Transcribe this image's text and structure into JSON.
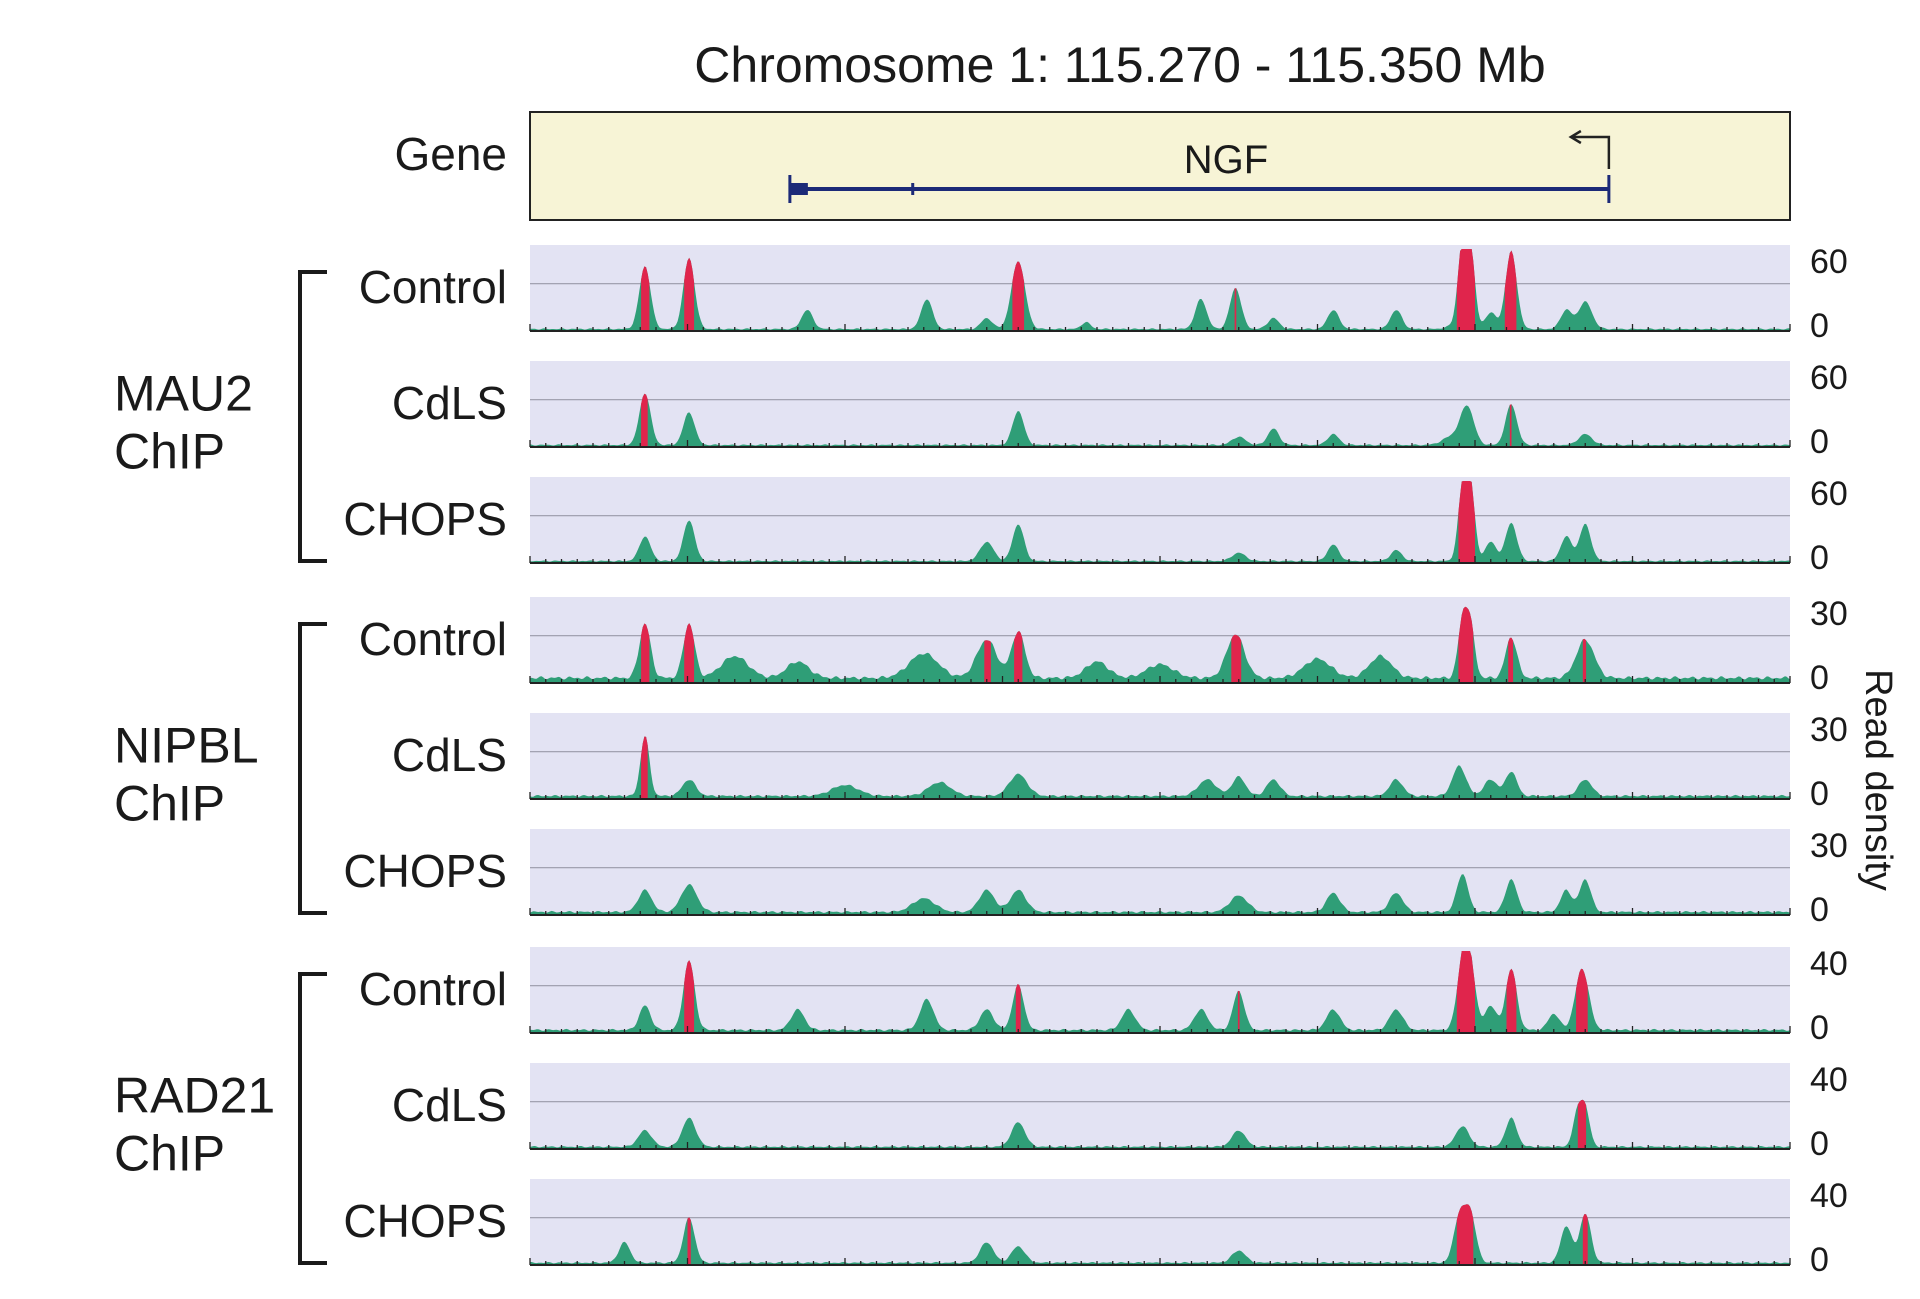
{
  "chart_data": {
    "type": "area",
    "title": "Chromosome 1: 115.270 - 115.350 Mb",
    "x_range_mb": [
      115.27,
      115.35
    ],
    "ylabel": "Read density",
    "threshold_fraction": 0.5,
    "colors": {
      "panel_bg": "#e3e3f3",
      "gene_bg": "#f7f4d6",
      "signal": "#2f9e77",
      "peak": "#e0254c",
      "gene_line": "#1c2a78",
      "bracket": "#1a1a1a"
    },
    "gene_track": {
      "label": "Gene",
      "name": "NGF",
      "start_mb": 115.2865,
      "end_mb": 115.3385,
      "strand": "minus"
    },
    "groups": [
      {
        "label_line1": "MAU2",
        "label_line2": "ChIP",
        "tracks": [
          0,
          1,
          2
        ]
      },
      {
        "label_line1": "NIPBL",
        "label_line2": "ChIP",
        "tracks": [
          3,
          4,
          5
        ]
      },
      {
        "label_line1": "RAD21",
        "label_line2": "ChIP",
        "tracks": [
          6,
          7,
          8
        ]
      }
    ],
    "tracks": [
      {
        "label": "Control",
        "ymin": "0",
        "ymax": "60",
        "ymax_value": 60,
        "base": 2,
        "peaks": [
          [
            115.2773,
            46,
            0.5
          ],
          [
            115.2801,
            52,
            0.5
          ],
          [
            115.2876,
            14,
            0.5
          ],
          [
            115.2952,
            22,
            0.5
          ],
          [
            115.299,
            8,
            0.5
          ],
          [
            115.301,
            50,
            0.6
          ],
          [
            115.3053,
            5,
            0.4
          ],
          [
            115.3126,
            22,
            0.5
          ],
          [
            115.3148,
            30,
            0.5
          ],
          [
            115.3172,
            8,
            0.5
          ],
          [
            115.321,
            14,
            0.5
          ],
          [
            115.325,
            14,
            0.5
          ],
          [
            115.329,
            4,
            0.8
          ],
          [
            115.3292,
            56,
            0.4
          ],
          [
            115.3297,
            58,
            0.4
          ],
          [
            115.331,
            12,
            0.5
          ],
          [
            115.3323,
            57,
            0.5
          ],
          [
            115.3358,
            14,
            0.5
          ],
          [
            115.337,
            20,
            0.6
          ]
        ]
      },
      {
        "label": "CdLS",
        "ymin": "0",
        "ymax": "60",
        "ymax_value": 60,
        "base": 2,
        "peaks": [
          [
            115.2773,
            38,
            0.5
          ],
          [
            115.2801,
            24,
            0.5
          ],
          [
            115.301,
            25,
            0.5
          ],
          [
            115.315,
            6,
            0.6
          ],
          [
            115.3172,
            12,
            0.5
          ],
          [
            115.321,
            8,
            0.5
          ],
          [
            115.3285,
            6,
            0.8
          ],
          [
            115.3295,
            28,
            0.6
          ],
          [
            115.3323,
            30,
            0.5
          ],
          [
            115.337,
            8,
            0.6
          ]
        ]
      },
      {
        "label": "CHOPS",
        "ymin": "0",
        "ymax": "60",
        "ymax_value": 60,
        "base": 2,
        "peaks": [
          [
            115.2773,
            18,
            0.5
          ],
          [
            115.2801,
            30,
            0.5
          ],
          [
            115.299,
            14,
            0.6
          ],
          [
            115.301,
            27,
            0.5
          ],
          [
            115.315,
            6,
            0.6
          ],
          [
            115.321,
            12,
            0.5
          ],
          [
            115.325,
            8,
            0.5
          ],
          [
            115.3292,
            50,
            0.4
          ],
          [
            115.3297,
            55,
            0.4
          ],
          [
            115.331,
            14,
            0.5
          ],
          [
            115.3323,
            28,
            0.5
          ],
          [
            115.3358,
            18,
            0.5
          ],
          [
            115.337,
            27,
            0.5
          ]
        ]
      },
      {
        "label": "Control",
        "ymin": "0",
        "ymax": "30",
        "ymax_value": 30,
        "base": 2.5,
        "peaks": [
          [
            115.2773,
            20,
            0.5
          ],
          [
            115.2801,
            20,
            0.5
          ],
          [
            115.283,
            8,
            1.2
          ],
          [
            115.287,
            6,
            1.0
          ],
          [
            115.295,
            9,
            1.3
          ],
          [
            115.299,
            14,
            0.9
          ],
          [
            115.301,
            17,
            0.6
          ],
          [
            115.306,
            6,
            1.0
          ],
          [
            115.31,
            5,
            1.2
          ],
          [
            115.3148,
            16,
            0.8
          ],
          [
            115.32,
            7,
            1.2
          ],
          [
            115.324,
            8,
            1.0
          ],
          [
            115.3292,
            20,
            0.4
          ],
          [
            115.3297,
            19,
            0.4
          ],
          [
            115.3323,
            15,
            0.5
          ],
          [
            115.337,
            14,
            0.8
          ]
        ]
      },
      {
        "label": "CdLS",
        "ymin": "0",
        "ymax": "30",
        "ymax_value": 30,
        "base": 1.5,
        "peaks": [
          [
            115.2773,
            22,
            0.4
          ],
          [
            115.2801,
            6,
            0.6
          ],
          [
            115.29,
            4,
            1.2
          ],
          [
            115.296,
            5,
            1.0
          ],
          [
            115.301,
            8,
            0.8
          ],
          [
            115.313,
            6,
            0.8
          ],
          [
            115.315,
            7,
            0.6
          ],
          [
            115.3172,
            6,
            0.6
          ],
          [
            115.325,
            6,
            0.6
          ],
          [
            115.329,
            11,
            0.6
          ],
          [
            115.331,
            6,
            0.6
          ],
          [
            115.3323,
            9,
            0.5
          ],
          [
            115.337,
            6,
            0.6
          ]
        ]
      },
      {
        "label": "CHOPS",
        "ymin": "0",
        "ymax": "30",
        "ymax_value": 30,
        "base": 1.5,
        "peaks": [
          [
            115.2773,
            8,
            0.6
          ],
          [
            115.2801,
            10,
            0.7
          ],
          [
            115.295,
            5,
            1.0
          ],
          [
            115.299,
            8,
            0.7
          ],
          [
            115.301,
            8,
            0.7
          ],
          [
            115.315,
            6,
            0.8
          ],
          [
            115.321,
            7,
            0.6
          ],
          [
            115.325,
            7,
            0.6
          ],
          [
            115.3292,
            14,
            0.5
          ],
          [
            115.3323,
            12,
            0.5
          ],
          [
            115.3358,
            8,
            0.5
          ],
          [
            115.337,
            12,
            0.5
          ]
        ]
      },
      {
        "label": "Control",
        "ymin": "0",
        "ymax": "40",
        "ymax_value": 40,
        "base": 2,
        "peaks": [
          [
            115.2773,
            12,
            0.5
          ],
          [
            115.2801,
            34,
            0.5
          ],
          [
            115.287,
            10,
            0.6
          ],
          [
            115.2952,
            15,
            0.6
          ],
          [
            115.299,
            10,
            0.6
          ],
          [
            115.301,
            22,
            0.5
          ],
          [
            115.308,
            10,
            0.6
          ],
          [
            115.3126,
            10,
            0.6
          ],
          [
            115.315,
            19,
            0.5
          ],
          [
            115.321,
            10,
            0.6
          ],
          [
            115.325,
            10,
            0.6
          ],
          [
            115.3292,
            30,
            0.5
          ],
          [
            115.3297,
            29,
            0.5
          ],
          [
            115.331,
            12,
            0.5
          ],
          [
            115.3323,
            30,
            0.5
          ],
          [
            115.335,
            8,
            0.5
          ],
          [
            115.3368,
            30,
            0.6
          ]
        ]
      },
      {
        "label": "CdLS",
        "ymin": "0",
        "ymax": "40",
        "ymax_value": 40,
        "base": 1.5,
        "peaks": [
          [
            115.2773,
            8,
            0.6
          ],
          [
            115.2801,
            14,
            0.6
          ],
          [
            115.301,
            12,
            0.6
          ],
          [
            115.315,
            8,
            0.6
          ],
          [
            115.3292,
            10,
            0.6
          ],
          [
            115.3323,
            14,
            0.5
          ],
          [
            115.3365,
            16,
            0.4
          ],
          [
            115.337,
            18,
            0.4
          ]
        ]
      },
      {
        "label": "CHOPS",
        "ymin": "0",
        "ymax": "40",
        "ymax_value": 40,
        "base": 1.5,
        "peaks": [
          [
            115.276,
            10,
            0.5
          ],
          [
            115.2801,
            22,
            0.5
          ],
          [
            115.299,
            10,
            0.6
          ],
          [
            115.301,
            8,
            0.6
          ],
          [
            115.315,
            6,
            0.6
          ],
          [
            115.329,
            22,
            0.5
          ],
          [
            115.3297,
            24,
            0.5
          ],
          [
            115.3358,
            18,
            0.5
          ],
          [
            115.337,
            24,
            0.5
          ]
        ]
      }
    ]
  }
}
